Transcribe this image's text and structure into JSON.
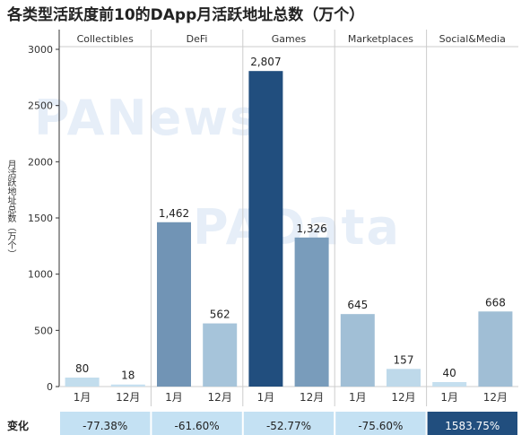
{
  "chart_data": {
    "type": "bar",
    "title": "各类型活跃度前10的DApp月活跃地址总数（万个）",
    "ylabel": "月活跃地址总数（万个）",
    "ylim": [
      0,
      3000
    ],
    "yticks": [
      0,
      500,
      1000,
      1500,
      2000,
      2500,
      3000
    ],
    "yticklabels": [
      "0",
      "500",
      "1000",
      "1500",
      "2000",
      "2500",
      "3000"
    ],
    "grid": false,
    "groups": [
      "Collectibles",
      "DeFi",
      "Games",
      "Marketplaces",
      "Social&Media"
    ],
    "months": [
      "1月",
      "12月"
    ],
    "values": [
      [
        80,
        18
      ],
      [
        1462,
        562
      ],
      [
        2807,
        1326
      ],
      [
        645,
        157
      ],
      [
        40,
        668
      ]
    ],
    "value_labels": [
      [
        "80",
        "18"
      ],
      [
        "1,462",
        "562"
      ],
      [
        "2,807",
        "1,326"
      ],
      [
        "645",
        "157"
      ],
      [
        "40",
        "668"
      ]
    ],
    "change_row_label": "变化",
    "changes": [
      "-77.38%",
      "-61.60%",
      "-52.77%",
      "-75.60%",
      "1583.75%"
    ],
    "watermarks": [
      "PANews",
      "PAData"
    ]
  },
  "colors": {
    "scale_light": "#c6e0f0",
    "scale_dark": "#214e7e",
    "group_divider": "#cccccc",
    "axis": "#333333",
    "watermark": "#e6eef8"
  }
}
